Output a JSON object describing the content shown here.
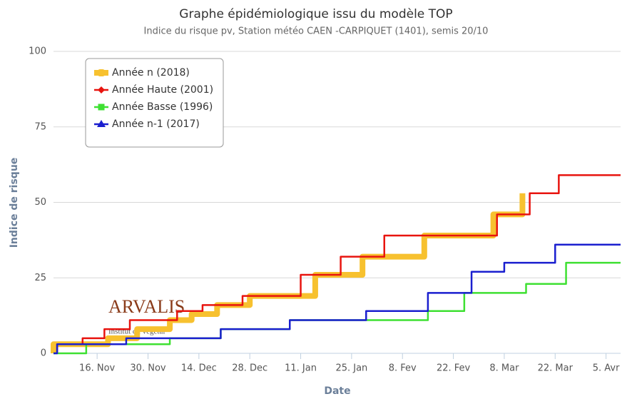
{
  "chart_data": {
    "type": "line",
    "step": true,
    "title": "Graphe épidémiologique issu du modèle TOP",
    "subtitle": "Indice du risque pv, Station météo CAEN -CARPIQUET (1401), semis 20/10",
    "x_label": "Date",
    "y_label": "Indice de risque",
    "logo": "ARVALIS",
    "logo_subtitle": "Institut du végétal",
    "grid": true,
    "legend_position": "top-left",
    "xlim": [
      15,
      171
    ],
    "xticks": [
      {
        "value": 27,
        "label": "16. Nov"
      },
      {
        "value": 41,
        "label": "30. Nov"
      },
      {
        "value": 55,
        "label": "14. Dec"
      },
      {
        "value": 69,
        "label": "28. Dec"
      },
      {
        "value": 83,
        "label": "11. Jan"
      },
      {
        "value": 97,
        "label": "25. Jan"
      },
      {
        "value": 111,
        "label": "8. Fev"
      },
      {
        "value": 125,
        "label": "22. Fev"
      },
      {
        "value": 139,
        "label": "8. Mar"
      },
      {
        "value": 153,
        "label": "22. Mar"
      },
      {
        "value": 167,
        "label": "5. Avr"
      }
    ],
    "ylim": [
      0,
      100
    ],
    "yticks": [
      0,
      25,
      50,
      75,
      100
    ],
    "series": [
      {
        "name": "Année n (2018)",
        "color": "#f7c12f",
        "width": 8,
        "marker": "band",
        "x": [
          15,
          15,
          30,
          30,
          38,
          38,
          47,
          47,
          53,
          53,
          60,
          60,
          69,
          69,
          87,
          87,
          100,
          100,
          117,
          117,
          136,
          136,
          144,
          144
        ],
        "values": [
          0,
          3,
          3,
          5,
          5,
          8,
          8,
          11,
          11,
          13,
          13,
          16,
          16,
          19,
          19,
          26,
          26,
          32,
          32,
          39,
          39,
          46,
          46,
          53
        ]
      },
      {
        "name": "Année Haute (2001)",
        "color": "#e8140f",
        "width": 2.5,
        "marker": "diamond",
        "x": [
          16,
          16,
          23,
          23,
          29,
          29,
          36,
          36,
          49,
          49,
          56,
          56,
          67,
          67,
          83,
          83,
          94,
          94,
          106,
          106,
          137,
          137,
          146,
          146,
          154,
          154,
          171
        ],
        "values": [
          0,
          3,
          3,
          5,
          5,
          8,
          8,
          11,
          11,
          14,
          14,
          16,
          16,
          19,
          19,
          26,
          26,
          32,
          32,
          39,
          39,
          46,
          46,
          53,
          53,
          59,
          59
        ]
      },
      {
        "name": "Année Basse (1996)",
        "color": "#3ee032",
        "width": 2.5,
        "marker": "square",
        "x": [
          15,
          24,
          24,
          47,
          47,
          61,
          61,
          80,
          80,
          118,
          118,
          128,
          128,
          145,
          145,
          156,
          156,
          171
        ],
        "values": [
          0,
          0,
          3,
          3,
          5,
          5,
          8,
          8,
          11,
          11,
          14,
          14,
          20,
          20,
          23,
          23,
          30,
          30
        ]
      },
      {
        "name": "Année n-1 (2017)",
        "color": "#1a1fcf",
        "width": 2.5,
        "marker": "triangle",
        "x": [
          15,
          16,
          16,
          35,
          35,
          61,
          61,
          80,
          80,
          101,
          101,
          118,
          118,
          130,
          130,
          139,
          139,
          153,
          153,
          171
        ],
        "values": [
          0,
          0,
          3,
          3,
          5,
          5,
          8,
          8,
          11,
          11,
          14,
          14,
          20,
          20,
          27,
          27,
          30,
          30,
          36,
          36
        ]
      }
    ]
  }
}
